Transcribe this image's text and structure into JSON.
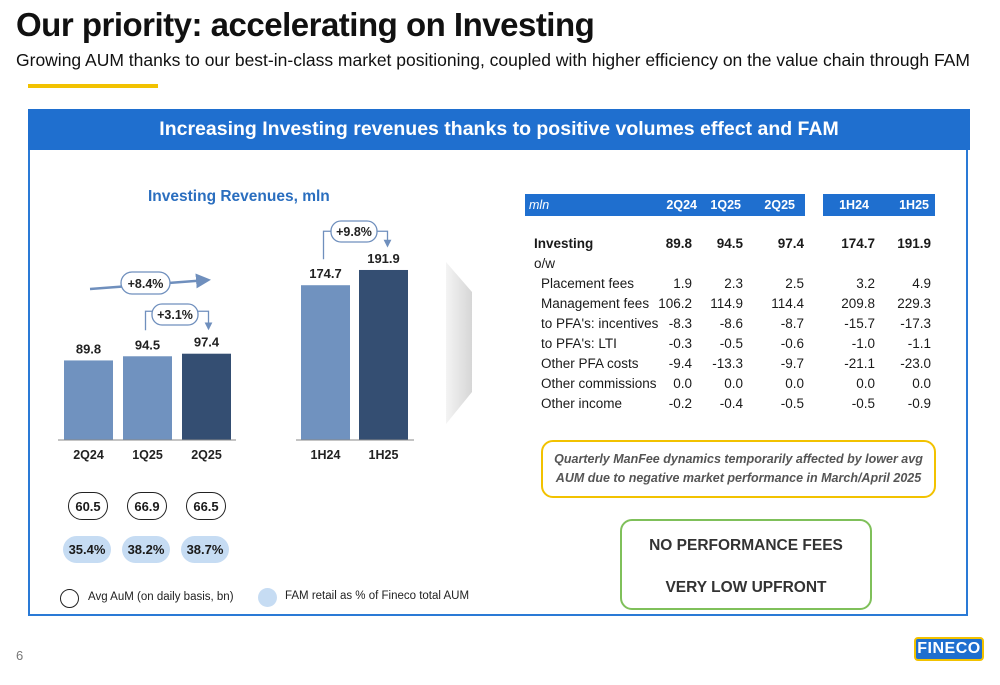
{
  "title": "Our priority: accelerating on Investing",
  "subtitle": "Growing AUM thanks to our best-in-class market positioning, coupled with higher efficiency on the value chain through FAM",
  "banner": "Increasing Investing revenues thanks to positive volumes effect and FAM",
  "chart_data": {
    "type": "bar",
    "title": "Investing Revenues, mln",
    "categories": [
      "2Q24",
      "1Q25",
      "2Q25",
      "1H24",
      "1H25"
    ],
    "values": [
      89.8,
      94.5,
      97.4,
      174.7,
      191.9
    ],
    "value_labels": [
      "89.8",
      "94.5",
      "97.4",
      "174.7",
      "191.9"
    ],
    "annotations": [
      "+8.4%",
      "+3.1%",
      "+9.8%"
    ],
    "colors": [
      "#7092bf",
      "#7092bf",
      "#344e72",
      "#7092bf",
      "#344e72"
    ],
    "xlabel": "",
    "ylabel": "",
    "grid": false
  },
  "avg_aum": [
    "60.5",
    "66.9",
    "66.5"
  ],
  "fam_share": [
    "35.4%",
    "38.2%",
    "38.7%"
  ],
  "legend": {
    "avg_aum": "Avg AuM (on daily basis, bn)",
    "fam_share": "FAM retail as % of Fineco total AUM"
  },
  "table": {
    "unit": "mln",
    "columns": [
      "2Q24",
      "1Q25",
      "2Q25",
      "1H24",
      "1H25"
    ],
    "rows": [
      {
        "label": "Investing",
        "values": [
          "89.8",
          "94.5",
          "97.4",
          "174.7",
          "191.9"
        ]
      },
      {
        "label": "o/w",
        "values": [
          "",
          "",
          "",
          "",
          ""
        ]
      },
      {
        "label": "Placement fees",
        "values": [
          "1.9",
          "2.3",
          "2.5",
          "3.2",
          "4.9"
        ]
      },
      {
        "label": "Management fees",
        "values": [
          "106.2",
          "114.9",
          "114.4",
          "209.8",
          "229.3"
        ]
      },
      {
        "label": "to PFA's: incentives",
        "values": [
          "-8.3",
          "-8.6",
          "-8.7",
          "-15.7",
          "-17.3"
        ]
      },
      {
        "label": "to PFA's: LTI",
        "values": [
          "-0.3",
          "-0.5",
          "-0.6",
          "-1.0",
          "-1.1"
        ]
      },
      {
        "label": "Other PFA costs",
        "values": [
          "-9.4",
          "-13.3",
          "-9.7",
          "-21.1",
          "-23.0"
        ]
      },
      {
        "label": "Other commissions",
        "values": [
          "0.0",
          "0.0",
          "0.0",
          "0.0",
          "0.0"
        ]
      },
      {
        "label": "Other income",
        "values": [
          "-0.2",
          "-0.4",
          "-0.5",
          "-0.5",
          "-0.9"
        ]
      }
    ]
  },
  "note": {
    "line1": "Quarterly ManFee dynamics temporarily affected by lower avg",
    "line2": "AUM due to negative market performance in March/April 2025"
  },
  "highlights": [
    "NO PERFORMANCE FEES",
    "VERY LOW UPFRONT"
  ],
  "page_number": "6",
  "logo": "FINECO",
  "colors": {
    "brand_blue": "#1f6fcf",
    "accent_yellow": "#f2c200",
    "bar_light": "#7092bf",
    "bar_dark": "#344e72",
    "pill_fill": "#c6dcf3",
    "green_border": "#7fc05a"
  }
}
